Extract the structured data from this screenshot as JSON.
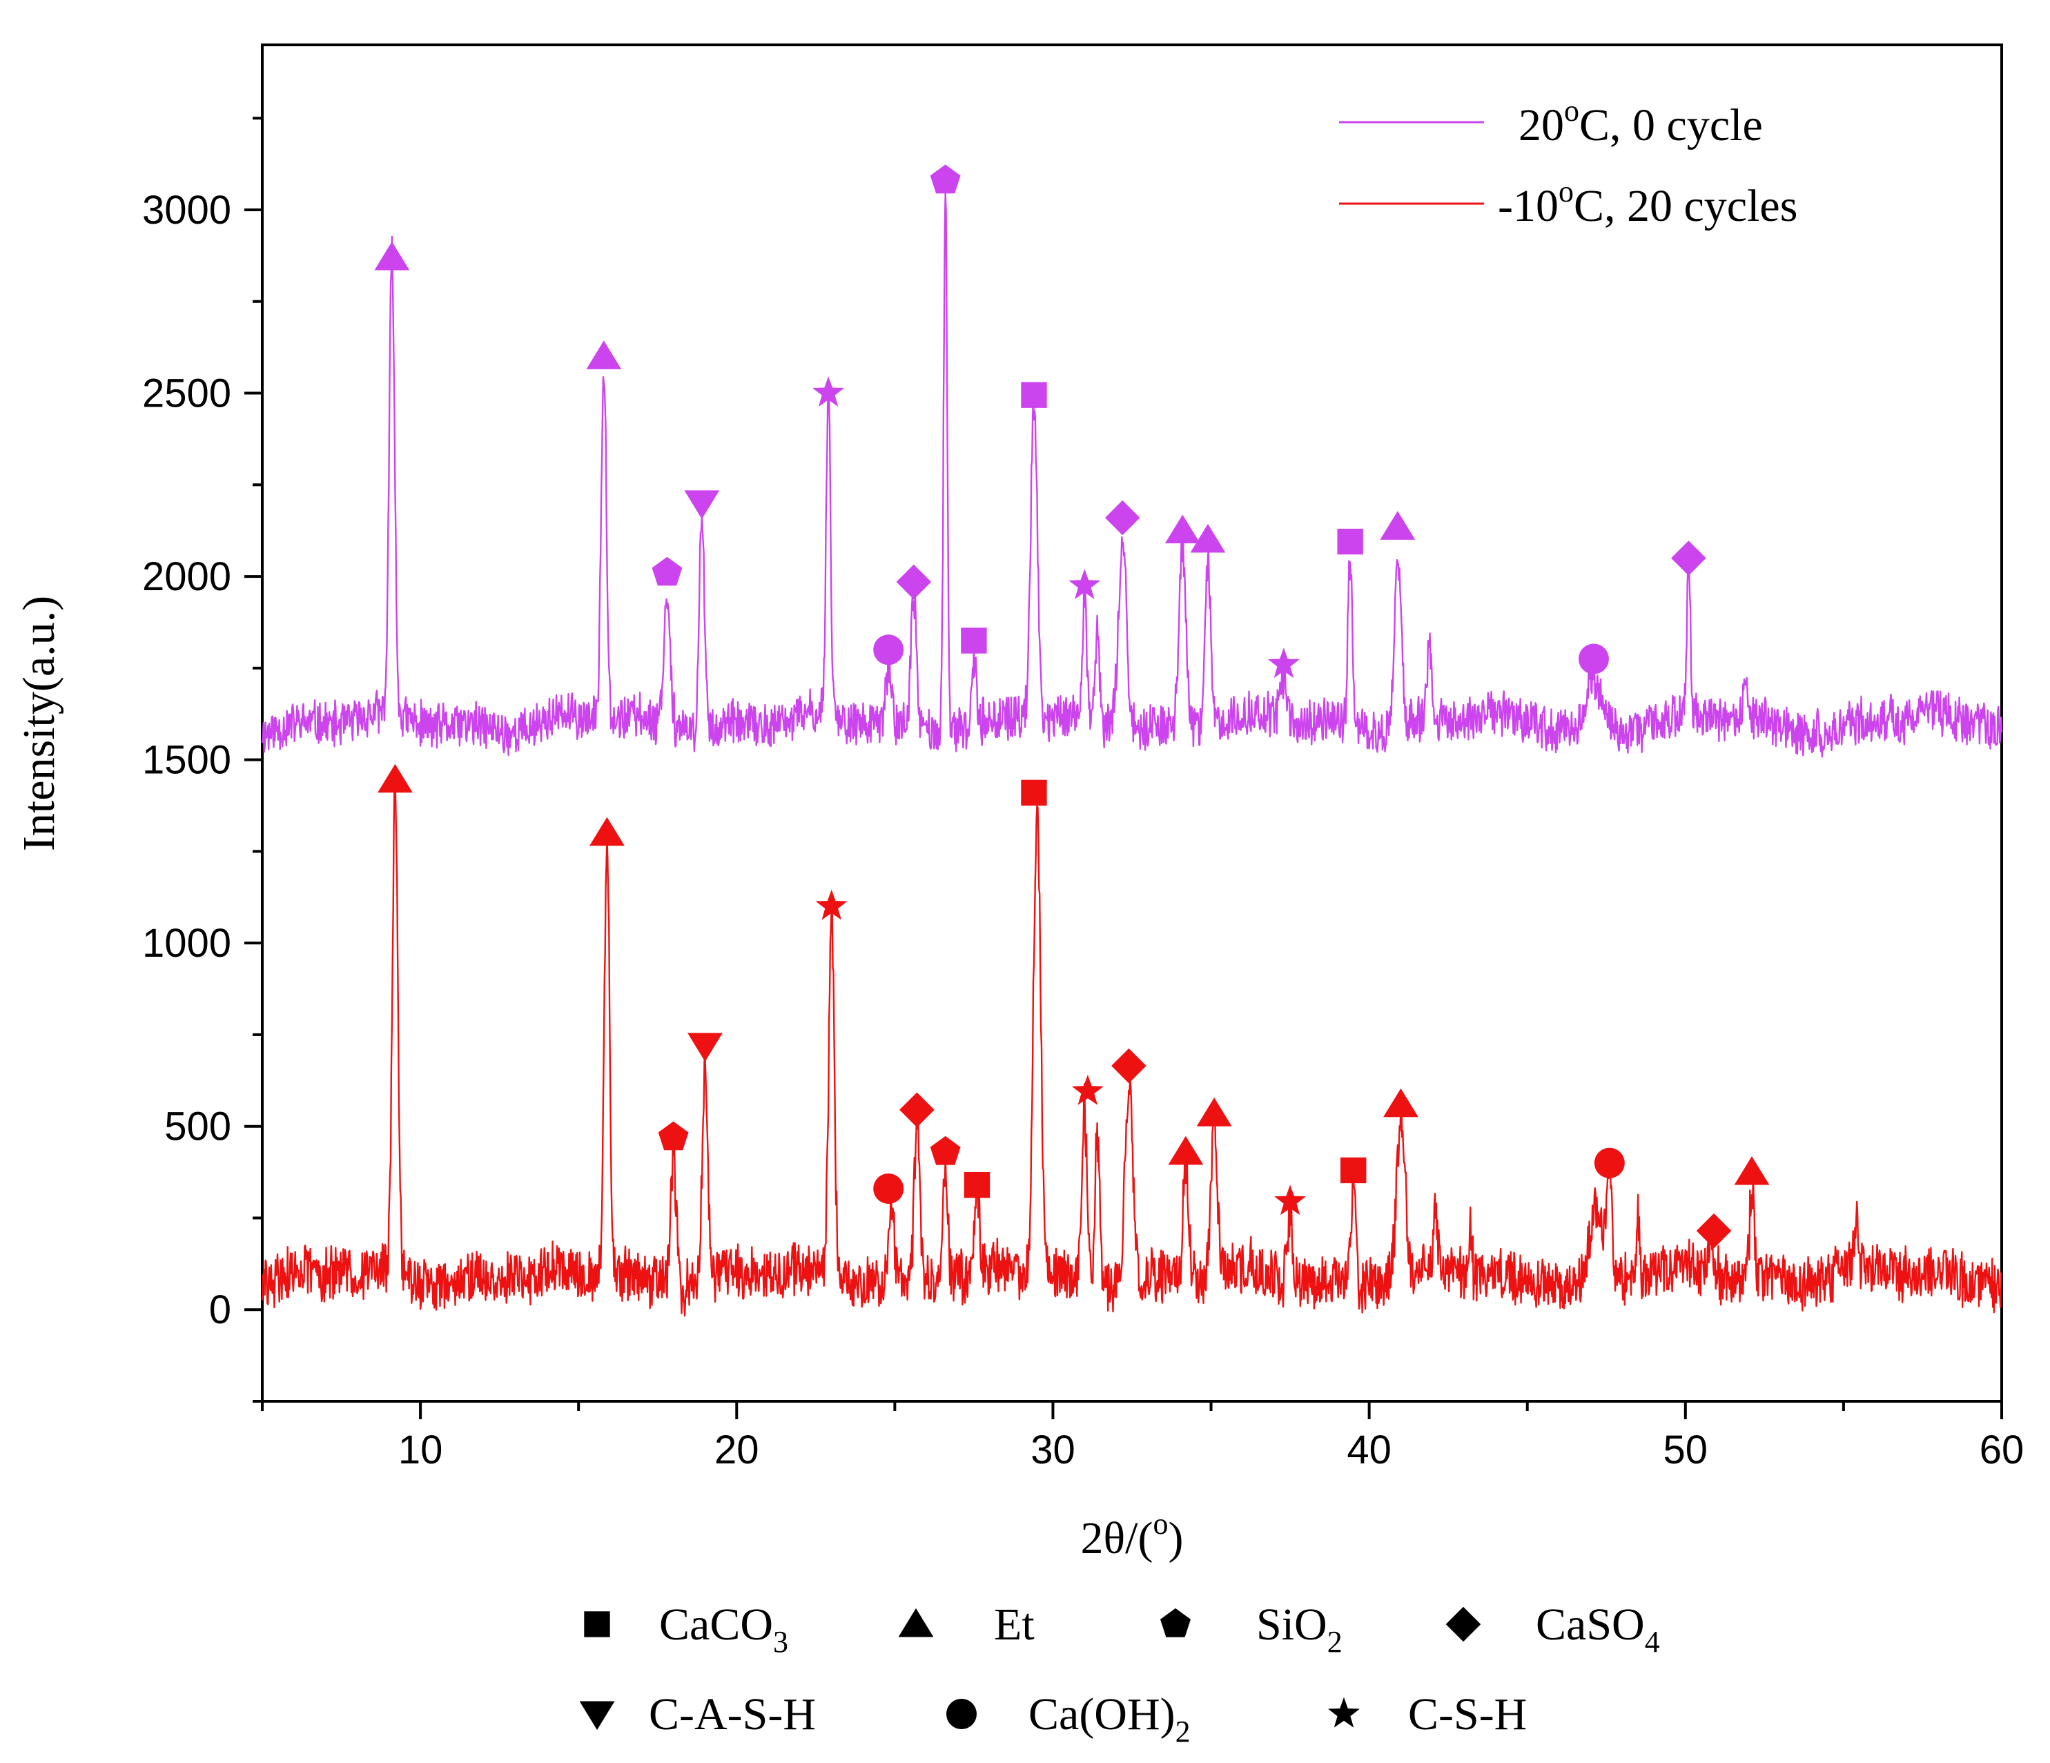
{
  "chart_data": {
    "type": "line",
    "title": "",
    "xlabel": "2θ/(°)",
    "xlabel_parts": [
      "2θ/(",
      "o",
      ")"
    ],
    "ylabel": "Intensity(a.u.)",
    "xlim": [
      5,
      60
    ],
    "ylim": [
      -250,
      3450
    ],
    "xticks": [
      10,
      20,
      30,
      40,
      50,
      60
    ],
    "yticks": [
      0,
      500,
      1000,
      1500,
      2000,
      2500,
      3000
    ],
    "grid": false,
    "legend_position": "top-right",
    "series": [
      {
        "name": "20°C, 0 cycle",
        "label_parts": [
          "20",
          "o",
          "C, 0 cycle"
        ],
        "color": "#cc44ee",
        "baseline": 1600,
        "noise": 70,
        "seed": 11,
        "peaks": [
          {
            "x": 9.1,
            "y": 2850,
            "w": 0.12
          },
          {
            "x": 15.8,
            "y": 2580,
            "w": 0.12
          },
          {
            "x": 17.8,
            "y": 1950,
            "w": 0.15
          },
          {
            "x": 18.9,
            "y": 2180,
            "w": 0.12
          },
          {
            "x": 22.9,
            "y": 2480,
            "w": 0.1
          },
          {
            "x": 24.8,
            "y": 1760,
            "w": 0.12
          },
          {
            "x": 25.6,
            "y": 1950,
            "w": 0.12
          },
          {
            "x": 26.6,
            "y": 3060,
            "w": 0.08
          },
          {
            "x": 27.5,
            "y": 1780,
            "w": 0.1
          },
          {
            "x": 29.4,
            "y": 2470,
            "w": 0.15
          },
          {
            "x": 31.0,
            "y": 1930,
            "w": 0.1
          },
          {
            "x": 31.4,
            "y": 1850,
            "w": 0.1
          },
          {
            "x": 32.2,
            "y": 2130,
            "w": 0.18
          },
          {
            "x": 34.1,
            "y": 2090,
            "w": 0.15
          },
          {
            "x": 34.9,
            "y": 2060,
            "w": 0.12
          },
          {
            "x": 37.3,
            "y": 1720,
            "w": 0.15
          },
          {
            "x": 39.4,
            "y": 2070,
            "w": 0.1
          },
          {
            "x": 40.9,
            "y": 2100,
            "w": 0.15
          },
          {
            "x": 41.9,
            "y": 1800,
            "w": 0.1
          },
          {
            "x": 47.1,
            "y": 1740,
            "w": 0.3
          },
          {
            "x": 50.1,
            "y": 2020,
            "w": 0.08
          },
          {
            "x": 51.9,
            "y": 1700,
            "w": 0.12
          },
          {
            "x": 56.5,
            "y": 1680,
            "w": 0.06
          }
        ]
      },
      {
        "name": "-10°C, 20 cycles",
        "label_parts": [
          "-10",
          "o",
          "C, 20 cycles"
        ],
        "color": "#ee1111",
        "baseline": 90,
        "noise": 85,
        "seed": 29,
        "peaks": [
          {
            "x": 9.2,
            "y": 1430,
            "w": 0.12
          },
          {
            "x": 15.9,
            "y": 1280,
            "w": 0.12
          },
          {
            "x": 18.0,
            "y": 450,
            "w": 0.12
          },
          {
            "x": 19.0,
            "y": 690,
            "w": 0.12
          },
          {
            "x": 23.0,
            "y": 1080,
            "w": 0.12
          },
          {
            "x": 24.9,
            "y": 310,
            "w": 0.1
          },
          {
            "x": 25.7,
            "y": 520,
            "w": 0.12
          },
          {
            "x": 26.6,
            "y": 410,
            "w": 0.1
          },
          {
            "x": 27.6,
            "y": 320,
            "w": 0.1
          },
          {
            "x": 29.5,
            "y": 1390,
            "w": 0.16
          },
          {
            "x": 31.0,
            "y": 570,
            "w": 0.1
          },
          {
            "x": 31.4,
            "y": 500,
            "w": 0.1
          },
          {
            "x": 32.4,
            "y": 640,
            "w": 0.18
          },
          {
            "x": 34.2,
            "y": 410,
            "w": 0.12
          },
          {
            "x": 35.1,
            "y": 510,
            "w": 0.14
          },
          {
            "x": 37.5,
            "y": 270,
            "w": 0.12
          },
          {
            "x": 39.5,
            "y": 360,
            "w": 0.1
          },
          {
            "x": 41.0,
            "y": 540,
            "w": 0.18
          },
          {
            "x": 42.1,
            "y": 250,
            "w": 0.1
          },
          {
            "x": 43.2,
            "y": 240,
            "w": 0.06
          },
          {
            "x": 47.2,
            "y": 290,
            "w": 0.28
          },
          {
            "x": 47.6,
            "y": 380,
            "w": 0.1
          },
          {
            "x": 48.5,
            "y": 240,
            "w": 0.06
          },
          {
            "x": 50.8,
            "y": 190,
            "w": 0.15
          },
          {
            "x": 52.1,
            "y": 350,
            "w": 0.1
          },
          {
            "x": 55.4,
            "y": 230,
            "w": 0.1
          }
        ]
      }
    ],
    "phase_legend": [
      {
        "marker": "square",
        "parts": [
          "CaCO",
          "3"
        ]
      },
      {
        "marker": "triangle-up",
        "parts": [
          "Et"
        ]
      },
      {
        "marker": "pentagon",
        "parts": [
          "SiO",
          "2"
        ]
      },
      {
        "marker": "diamond",
        "parts": [
          "CaSO",
          "4"
        ]
      },
      {
        "marker": "triangle-down",
        "parts": [
          "C-A-S-H"
        ]
      },
      {
        "marker": "circle",
        "parts": [
          "Ca(OH)",
          "2"
        ]
      },
      {
        "marker": "star",
        "parts": [
          "C-S-H"
        ]
      }
    ],
    "annotations": [
      {
        "series": 0,
        "marker": "triangle-up",
        "x": 9.1,
        "y": 2870
      },
      {
        "series": 0,
        "marker": "triangle-up",
        "x": 15.8,
        "y": 2600
      },
      {
        "series": 0,
        "marker": "pentagon",
        "x": 17.8,
        "y": 2010
      },
      {
        "series": 0,
        "marker": "triangle-down",
        "x": 18.9,
        "y": 2200
      },
      {
        "series": 0,
        "marker": "star",
        "x": 22.9,
        "y": 2500
      },
      {
        "series": 0,
        "marker": "circle",
        "x": 24.8,
        "y": 1800
      },
      {
        "series": 0,
        "marker": "diamond",
        "x": 25.6,
        "y": 1985
      },
      {
        "series": 0,
        "marker": "pentagon",
        "x": 26.6,
        "y": 3080
      },
      {
        "series": 0,
        "marker": "square",
        "x": 27.5,
        "y": 1825
      },
      {
        "series": 0,
        "marker": "square",
        "x": 29.4,
        "y": 2495
      },
      {
        "series": 0,
        "marker": "star",
        "x": 31.0,
        "y": 1975
      },
      {
        "series": 0,
        "marker": "diamond",
        "x": 32.2,
        "y": 2160
      },
      {
        "series": 0,
        "marker": "triangle-up",
        "x": 34.1,
        "y": 2125
      },
      {
        "series": 0,
        "marker": "triangle-up",
        "x": 34.9,
        "y": 2100
      },
      {
        "series": 0,
        "marker": "star",
        "x": 37.3,
        "y": 1760
      },
      {
        "series": 0,
        "marker": "square",
        "x": 39.4,
        "y": 2095
      },
      {
        "series": 0,
        "marker": "triangle-up",
        "x": 40.9,
        "y": 2135
      },
      {
        "series": 0,
        "marker": "circle",
        "x": 47.1,
        "y": 1775
      },
      {
        "series": 0,
        "marker": "diamond",
        "x": 50.1,
        "y": 2050
      },
      {
        "series": 1,
        "marker": "triangle-up",
        "x": 9.2,
        "y": 1445
      },
      {
        "series": 1,
        "marker": "triangle-up",
        "x": 15.9,
        "y": 1300
      },
      {
        "series": 1,
        "marker": "pentagon",
        "x": 18.0,
        "y": 470
      },
      {
        "series": 1,
        "marker": "triangle-down",
        "x": 19.0,
        "y": 720
      },
      {
        "series": 1,
        "marker": "star",
        "x": 23.0,
        "y": 1100
      },
      {
        "series": 1,
        "marker": "circle",
        "x": 24.8,
        "y": 330
      },
      {
        "series": 1,
        "marker": "diamond",
        "x": 25.7,
        "y": 545
      },
      {
        "series": 1,
        "marker": "pentagon",
        "x": 26.6,
        "y": 430
      },
      {
        "series": 1,
        "marker": "square",
        "x": 27.6,
        "y": 340
      },
      {
        "series": 1,
        "marker": "square",
        "x": 29.4,
        "y": 1410
      },
      {
        "series": 1,
        "marker": "star",
        "x": 31.1,
        "y": 595
      },
      {
        "series": 1,
        "marker": "diamond",
        "x": 32.4,
        "y": 665
      },
      {
        "series": 1,
        "marker": "triangle-up",
        "x": 34.2,
        "y": 430
      },
      {
        "series": 1,
        "marker": "triangle-up",
        "x": 35.1,
        "y": 535
      },
      {
        "series": 1,
        "marker": "star",
        "x": 37.5,
        "y": 295
      },
      {
        "series": 1,
        "marker": "square",
        "x": 39.5,
        "y": 380
      },
      {
        "series": 1,
        "marker": "triangle-up",
        "x": 41.0,
        "y": 560
      },
      {
        "series": 1,
        "marker": "circle",
        "x": 47.6,
        "y": 400
      },
      {
        "series": 1,
        "marker": "diamond",
        "x": 50.9,
        "y": 215
      },
      {
        "series": 1,
        "marker": "triangle-up",
        "x": 52.1,
        "y": 375
      }
    ]
  }
}
